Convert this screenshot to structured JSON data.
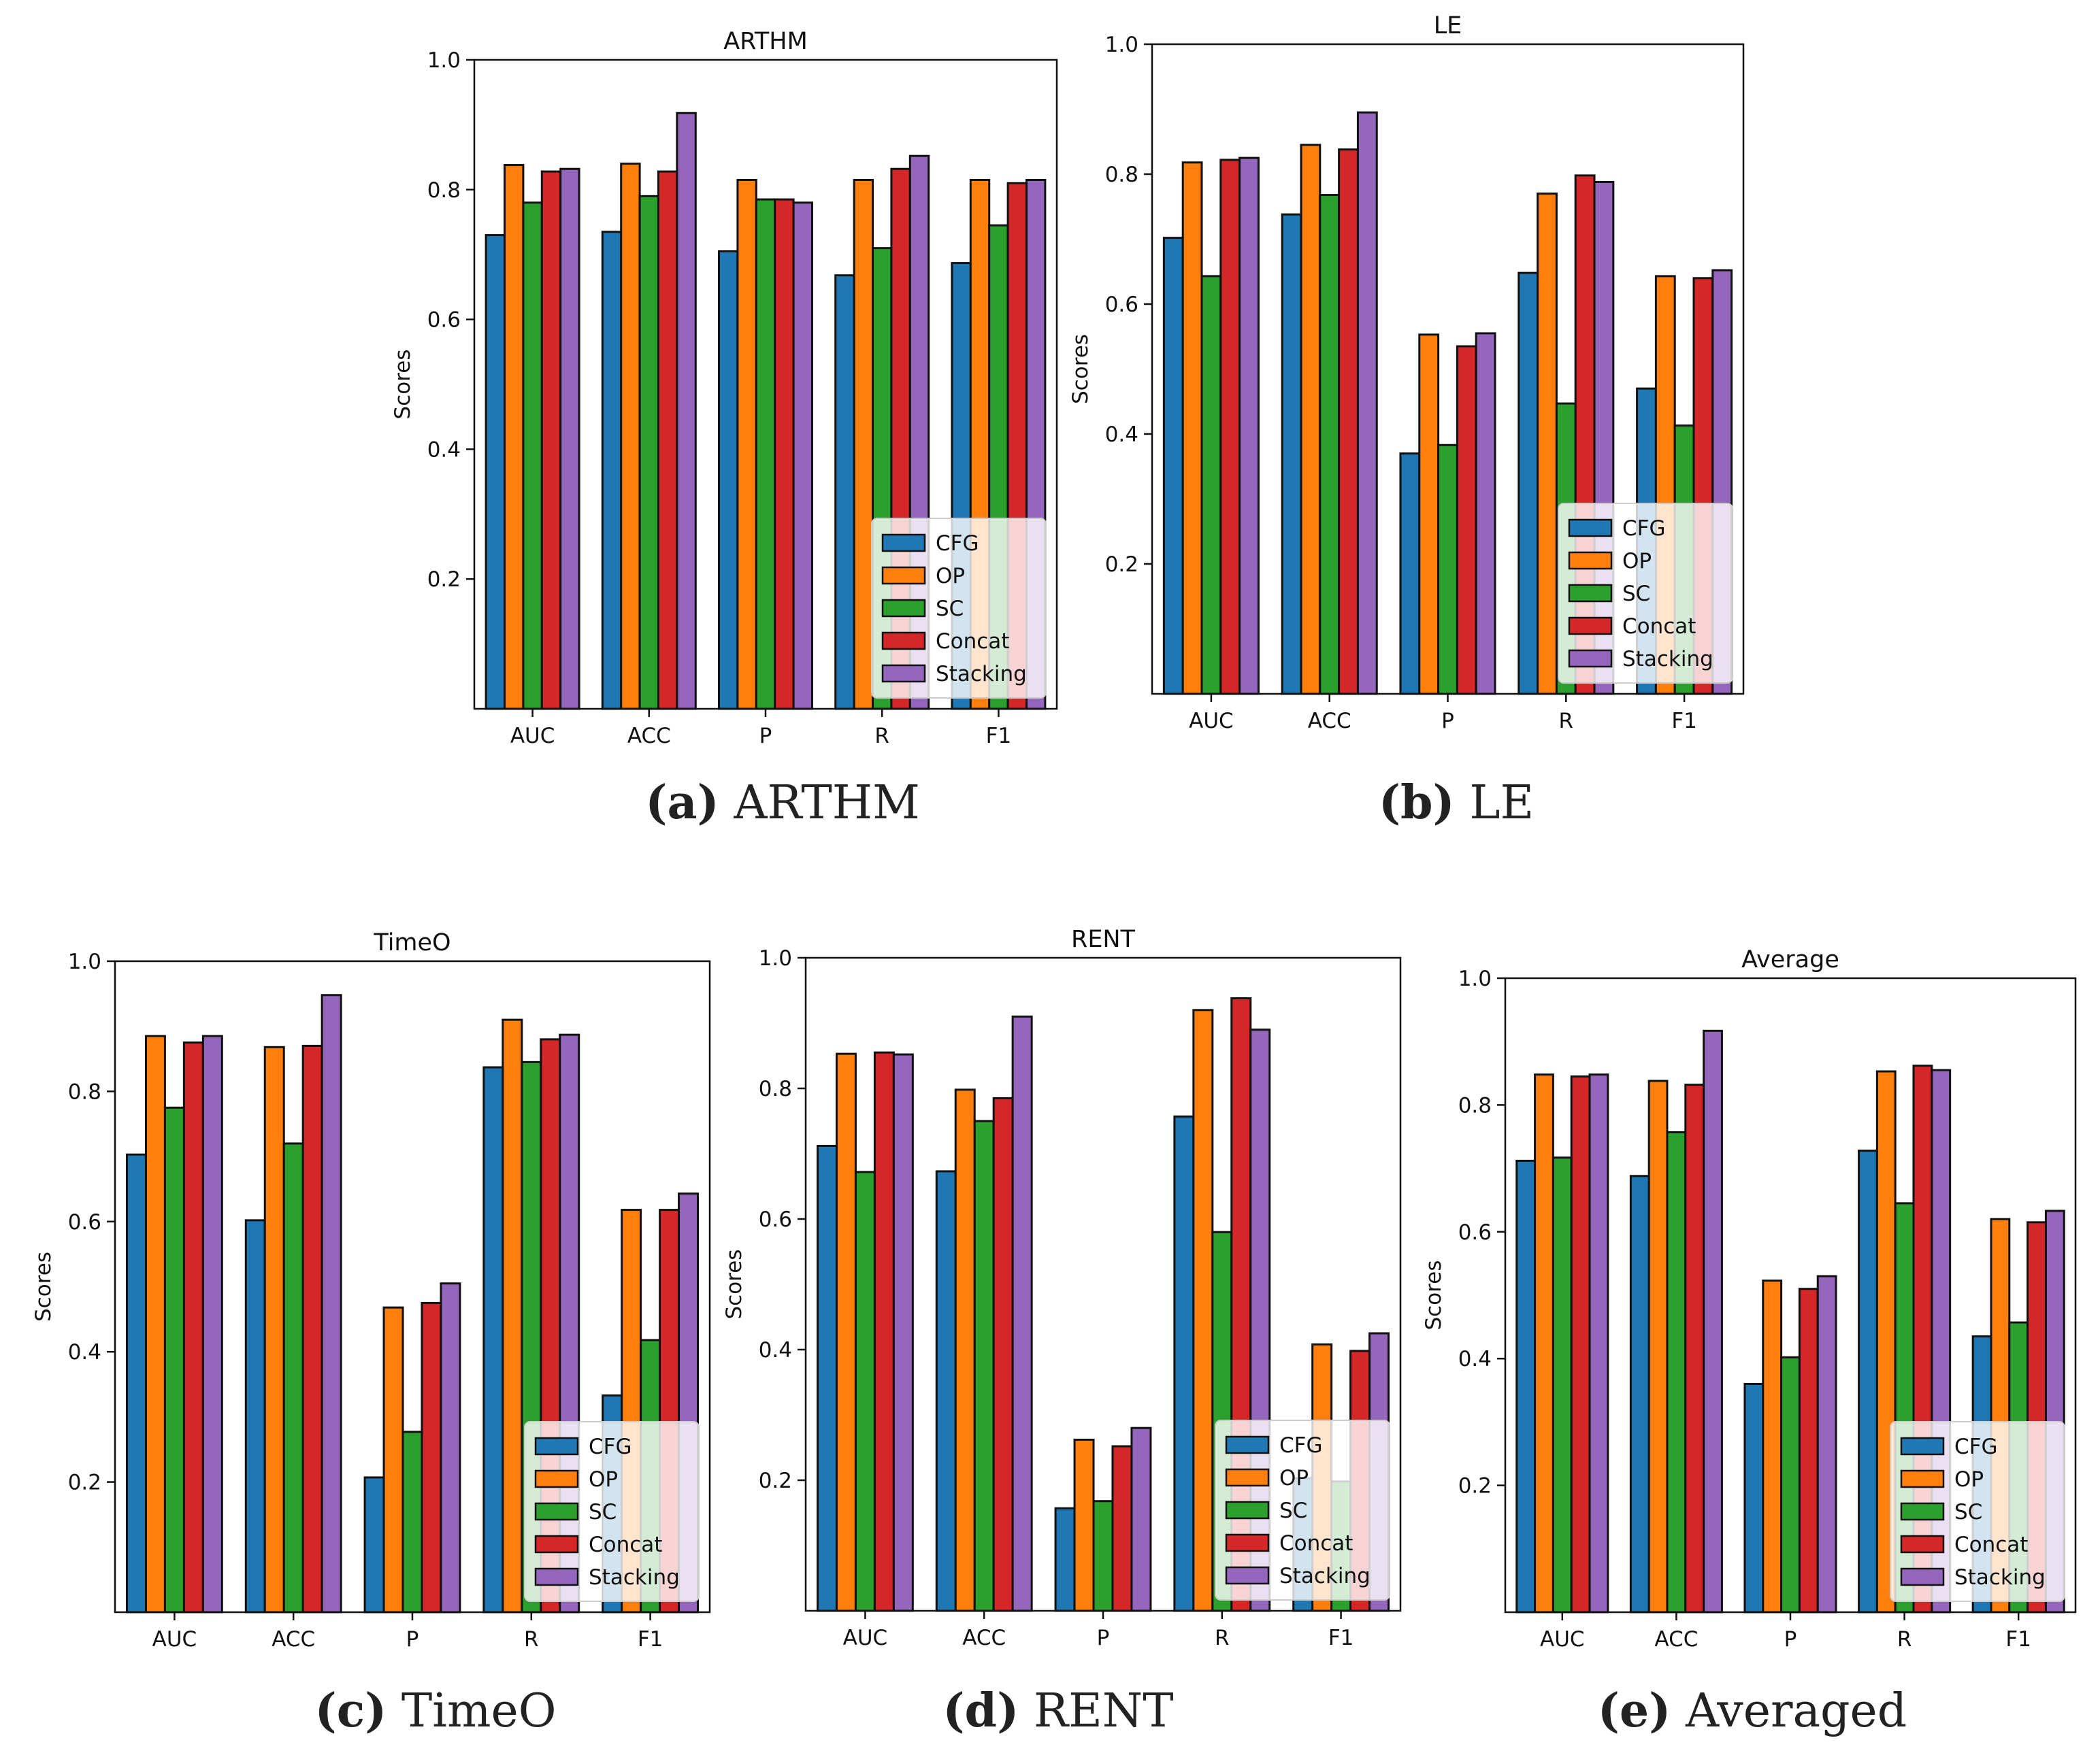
{
  "series_names": [
    "CFG",
    "OP",
    "SC",
    "Concat",
    "Stacking"
  ],
  "colors": {
    "CFG": "#1f77b4",
    "OP": "#ff7f0e",
    "SC": "#2ca02c",
    "Concat": "#d62728",
    "Stacking": "#9467bd"
  },
  "ylabel": "Scores",
  "y_ticks": [
    "0.2",
    "0.4",
    "0.6",
    "0.8",
    "1.0"
  ],
  "chart_data": [
    {
      "type": "bar",
      "title": "ARTHM",
      "categories": [
        "AUC",
        "ACC",
        "P",
        "R",
        "F1"
      ],
      "ylabel": "Scores",
      "ylim": [
        0,
        1.0
      ],
      "legend": "bottom-right",
      "series": [
        {
          "name": "CFG",
          "values": [
            0.73,
            0.735,
            0.705,
            0.668,
            0.687
          ]
        },
        {
          "name": "OP",
          "values": [
            0.838,
            0.84,
            0.815,
            0.815,
            0.815
          ]
        },
        {
          "name": "SC",
          "values": [
            0.78,
            0.79,
            0.785,
            0.71,
            0.745
          ]
        },
        {
          "name": "Concat",
          "values": [
            0.828,
            0.828,
            0.785,
            0.832,
            0.81
          ]
        },
        {
          "name": "Stacking",
          "values": [
            0.832,
            0.918,
            0.78,
            0.852,
            0.815
          ]
        }
      ]
    },
    {
      "type": "bar",
      "title": "LE",
      "categories": [
        "AUC",
        "ACC",
        "P",
        "R",
        "F1"
      ],
      "ylabel": "Scores",
      "ylim": [
        0,
        1.0
      ],
      "legend": "bottom-right",
      "series": [
        {
          "name": "CFG",
          "values": [
            0.702,
            0.738,
            0.37,
            0.648,
            0.47
          ]
        },
        {
          "name": "OP",
          "values": [
            0.818,
            0.845,
            0.553,
            0.77,
            0.643
          ]
        },
        {
          "name": "SC",
          "values": [
            0.643,
            0.768,
            0.383,
            0.447,
            0.413
          ]
        },
        {
          "name": "Concat",
          "values": [
            0.822,
            0.838,
            0.535,
            0.798,
            0.64
          ]
        },
        {
          "name": "Stacking",
          "values": [
            0.825,
            0.895,
            0.555,
            0.788,
            0.652
          ]
        }
      ]
    },
    {
      "type": "bar",
      "title": "TimeO",
      "categories": [
        "AUC",
        "ACC",
        "P",
        "R",
        "F1"
      ],
      "ylabel": "Scores",
      "ylim": [
        0,
        1.0
      ],
      "legend": "bottom-right",
      "series": [
        {
          "name": "CFG",
          "values": [
            0.703,
            0.602,
            0.207,
            0.837,
            0.333
          ]
        },
        {
          "name": "OP",
          "values": [
            0.885,
            0.868,
            0.468,
            0.91,
            0.618
          ]
        },
        {
          "name": "SC",
          "values": [
            0.775,
            0.72,
            0.277,
            0.845,
            0.418
          ]
        },
        {
          "name": "Concat",
          "values": [
            0.875,
            0.87,
            0.475,
            0.88,
            0.618
          ]
        },
        {
          "name": "Stacking",
          "values": [
            0.885,
            0.948,
            0.505,
            0.887,
            0.643
          ]
        }
      ]
    },
    {
      "type": "bar",
      "title": "RENT",
      "categories": [
        "AUC",
        "ACC",
        "P",
        "R",
        "F1"
      ],
      "ylabel": "Scores",
      "ylim": [
        0,
        1.0
      ],
      "legend": "bottom-right",
      "series": [
        {
          "name": "CFG",
          "values": [
            0.712,
            0.673,
            0.157,
            0.757,
            0.203
          ]
        },
        {
          "name": "OP",
          "values": [
            0.853,
            0.798,
            0.262,
            0.92,
            0.408
          ]
        },
        {
          "name": "SC",
          "values": [
            0.672,
            0.75,
            0.168,
            0.58,
            0.198
          ]
        },
        {
          "name": "Concat",
          "values": [
            0.855,
            0.785,
            0.252,
            0.938,
            0.398
          ]
        },
        {
          "name": "Stacking",
          "values": [
            0.852,
            0.91,
            0.28,
            0.89,
            0.425
          ]
        }
      ]
    },
    {
      "type": "bar",
      "title": "Average",
      "categories": [
        "AUC",
        "ACC",
        "P",
        "R",
        "F1"
      ],
      "ylabel": "Scores",
      "ylim": [
        0,
        1.0
      ],
      "legend": "bottom-right",
      "series": [
        {
          "name": "CFG",
          "values": [
            0.712,
            0.688,
            0.36,
            0.728,
            0.435
          ]
        },
        {
          "name": "OP",
          "values": [
            0.848,
            0.838,
            0.523,
            0.853,
            0.62
          ]
        },
        {
          "name": "SC",
          "values": [
            0.717,
            0.757,
            0.402,
            0.645,
            0.457
          ]
        },
        {
          "name": "Concat",
          "values": [
            0.845,
            0.832,
            0.51,
            0.862,
            0.615
          ]
        },
        {
          "name": "Stacking",
          "values": [
            0.848,
            0.917,
            0.53,
            0.855,
            0.633
          ]
        }
      ]
    }
  ],
  "captions": [
    {
      "label": "(a)",
      "text": "ARTHM"
    },
    {
      "label": "(b)",
      "text": "LE"
    },
    {
      "label": "(c)",
      "text": "TimeO"
    },
    {
      "label": "(d)",
      "text": "RENT"
    },
    {
      "label": "(e)",
      "text": "Averaged"
    }
  ]
}
